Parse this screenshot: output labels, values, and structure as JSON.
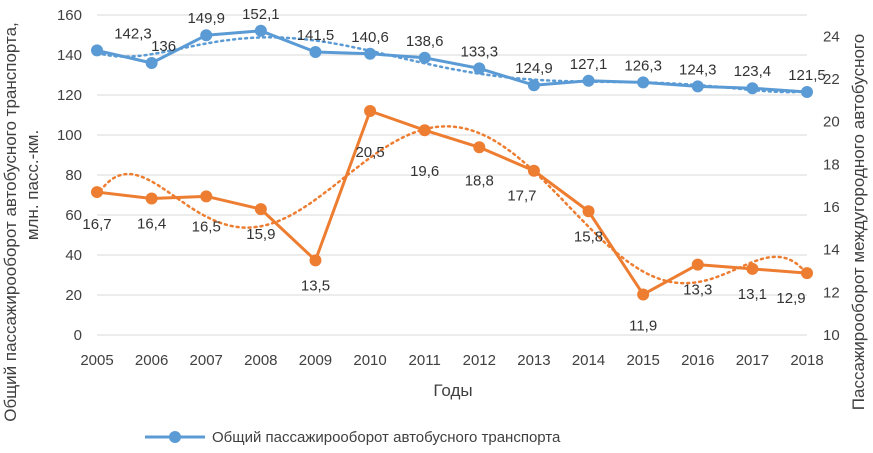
{
  "chart_data": {
    "type": "line",
    "categories": [
      "2005",
      "2006",
      "2007",
      "2008",
      "2009",
      "2010",
      "2011",
      "2012",
      "2013",
      "2014",
      "2015",
      "2016",
      "2017",
      "2018"
    ],
    "xlabel": "Годы",
    "ylabel_left_line1": "Общий пассажирооборот автобусного транспорта,",
    "ylabel_left_line2": "млн. пасс.-км.",
    "ylabel_right": "Пассажирооборот междугородного автобусного",
    "ylim_left": [
      0,
      160
    ],
    "yticks_left": [
      "0",
      "20",
      "40",
      "60",
      "80",
      "100",
      "120",
      "140",
      "160"
    ],
    "ylim_right": [
      10,
      25
    ],
    "yticks_right": [
      "10",
      "12",
      "14",
      "16",
      "18",
      "20",
      "22",
      "24"
    ],
    "grid": true,
    "series": [
      {
        "name": "Общий пассажирооборот автобусного транспорта",
        "axis": "left",
        "color": "#5b9bd5",
        "values": [
          142.3,
          136,
          149.9,
          152.1,
          141.5,
          140.6,
          138.6,
          133.3,
          124.9,
          127.1,
          126.3,
          124.3,
          123.4,
          121.5
        ],
        "labels": [
          "142,3",
          "136",
          "149,9",
          "152,1",
          "141,5",
          "140,6",
          "138,6",
          "133,3",
          "124,9",
          "127,1",
          "126,3",
          "124,3",
          "123,4",
          "121,5"
        ],
        "trendline": "dotted"
      },
      {
        "axis": "right",
        "color": "#ed7d31",
        "values": [
          16.7,
          16.4,
          16.5,
          15.9,
          13.5,
          20.5,
          19.6,
          18.8,
          17.7,
          15.8,
          11.9,
          13.3,
          13.1,
          12.9
        ],
        "labels": [
          "16,7",
          "16,4",
          "16,5",
          "15,9",
          "13,5",
          "20,5",
          "19,6",
          "18,8",
          "17,7",
          "15,8",
          "11,9",
          "13,3",
          "13,1",
          "12,9"
        ],
        "trendline": "dotted"
      }
    ],
    "legend_position": "bottom"
  }
}
